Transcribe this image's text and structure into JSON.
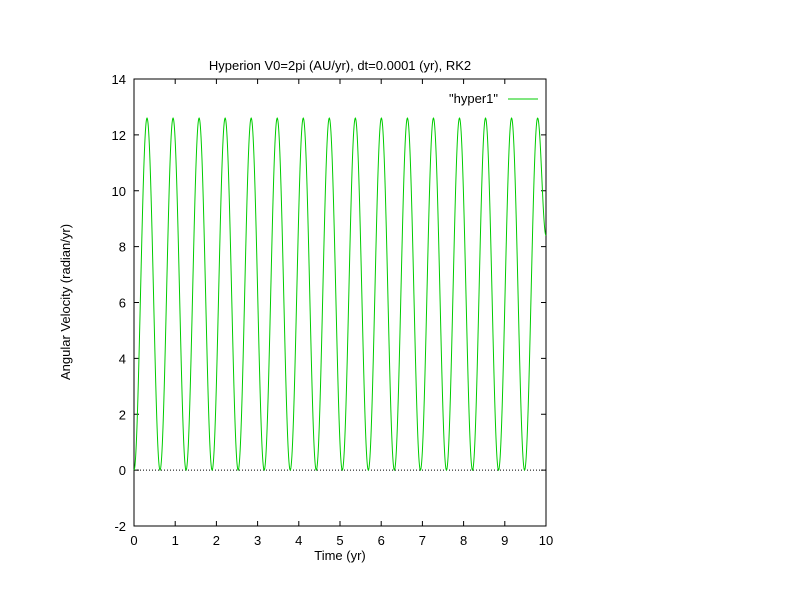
{
  "chart_data": {
    "type": "line",
    "title": "Hyperion V0=2pi (AU/yr), dt=0.0001 (yr), RK2",
    "xlabel": "Time (yr)",
    "ylabel": "Angular Velocity (radian/yr)",
    "xlim": [
      0,
      10
    ],
    "ylim": [
      -2,
      14
    ],
    "xticks": [
      "0",
      "1",
      "2",
      "3",
      "4",
      "5",
      "6",
      "7",
      "8",
      "9",
      "10"
    ],
    "yticks": [
      "-2",
      "0",
      "2",
      "4",
      "6",
      "8",
      "10",
      "12",
      "14"
    ],
    "grid": false,
    "legend_position": "top-right",
    "zero_line": true,
    "series": [
      {
        "name": "\"hyper1\"",
        "color": "#00cc00",
        "x": [
          0,
          0.316,
          0.632,
          0.948,
          1.264,
          1.58,
          1.896,
          2.212,
          2.528,
          2.844,
          3.16,
          3.476,
          3.792,
          4.108,
          4.424,
          4.74,
          5.056,
          5.372,
          5.688,
          6.004,
          6.32,
          6.636,
          6.952,
          7.268,
          7.584,
          7.9,
          8.216,
          8.532,
          8.848,
          9.164,
          9.48,
          9.796,
          10.0
        ],
        "y": [
          0,
          12.6,
          0,
          12.6,
          0,
          12.6,
          0,
          12.6,
          0,
          12.6,
          0,
          12.6,
          0,
          12.6,
          0,
          12.6,
          0,
          12.6,
          0,
          12.6,
          0,
          12.6,
          0,
          12.6,
          0,
          12.6,
          0,
          12.6,
          0,
          12.6,
          0,
          12.6,
          8.4
        ]
      }
    ]
  }
}
